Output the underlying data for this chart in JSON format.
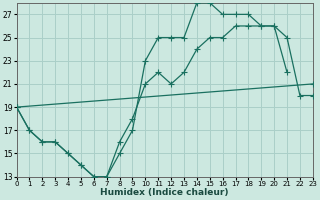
{
  "xlabel": "Humidex (Indice chaleur)",
  "bg_color": "#cce8e0",
  "grid_color": "#aacfc8",
  "line_color": "#1a7060",
  "xlim": [
    0,
    23
  ],
  "ylim": [
    13,
    28
  ],
  "yticks": [
    13,
    15,
    17,
    19,
    21,
    23,
    25,
    27
  ],
  "xticks": [
    0,
    1,
    2,
    3,
    4,
    5,
    6,
    7,
    8,
    9,
    10,
    11,
    12,
    13,
    14,
    15,
    16,
    17,
    18,
    19,
    20,
    21,
    22,
    23
  ],
  "line1_x": [
    0,
    1,
    2,
    3,
    4,
    5,
    6,
    7,
    8,
    9,
    10,
    11,
    12,
    13,
    14,
    15,
    16,
    17,
    18,
    19,
    20,
    21,
    22,
    23
  ],
  "line1_y": [
    19,
    17,
    16,
    16,
    15,
    14,
    13,
    13,
    16,
    18,
    21,
    22,
    21,
    22,
    24,
    25,
    25,
    26,
    26,
    26,
    26,
    25,
    20,
    20
  ],
  "line2_x": [
    0,
    1,
    2,
    3,
    4,
    5,
    6,
    7,
    8,
    9,
    10,
    11,
    12,
    13,
    14,
    15,
    16,
    17,
    18,
    19,
    20,
    21
  ],
  "line2_y": [
    19,
    17,
    16,
    16,
    15,
    14,
    13,
    13,
    15,
    17,
    23,
    25,
    25,
    25,
    28,
    28,
    27,
    27,
    27,
    26,
    26,
    22
  ],
  "line3_x": [
    0,
    23
  ],
  "line3_y": [
    19,
    21
  ]
}
